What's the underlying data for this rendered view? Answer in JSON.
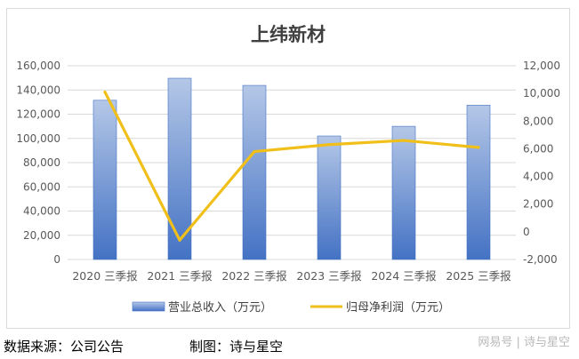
{
  "chart_data": {
    "type": "bar+line",
    "title": "上纬新材",
    "categories": [
      "2020 三季报",
      "2021 三季报",
      "2022 三季报",
      "2023 三季报",
      "2024 三季报",
      "2025 三季报"
    ],
    "series": [
      {
        "name": "营业总收入（万元）",
        "type": "bar",
        "axis": "left",
        "values": [
          131500,
          149700,
          143800,
          102000,
          110000,
          127500
        ],
        "color": "#4472c4"
      },
      {
        "name": "归母净利润（万元）",
        "type": "line",
        "axis": "right",
        "values": [
          10100,
          -600,
          5800,
          6300,
          6600,
          6100
        ],
        "color": "#f0bf1a"
      }
    ],
    "y_left": {
      "min": 0,
      "max": 160000,
      "ticks": [
        "0",
        "20,000",
        "40,000",
        "60,000",
        "80,000",
        "100,000",
        "120,000",
        "140,000",
        "160,000"
      ]
    },
    "y_right": {
      "min": -2000,
      "max": 12000,
      "ticks": [
        "-2,000",
        "0",
        "2,000",
        "4,000",
        "6,000",
        "8,000",
        "10,000",
        "12,000"
      ]
    },
    "grid": true,
    "legend_position": "bottom"
  },
  "footer": {
    "source": "数据来源：公司公告",
    "credit": "制图：诗与星空",
    "watermark": "网易号 | 诗与星空"
  }
}
